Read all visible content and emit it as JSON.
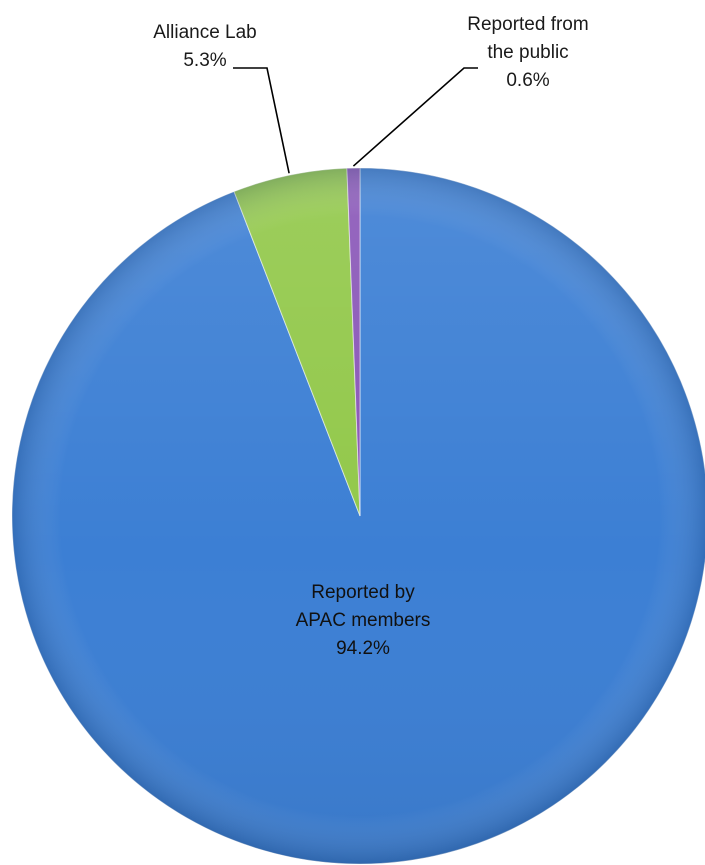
{
  "chart_data": {
    "type": "pie",
    "title": "",
    "slices": [
      {
        "name": "Reported by APAC members",
        "label_lines": [
          "Reported by",
          "APAC members"
        ],
        "value": 94.2,
        "value_label": "94.2%",
        "color": "#3c7fd4",
        "label_position": "inside"
      },
      {
        "name": "Alliance Lab",
        "label_lines": [
          "Alliance Lab"
        ],
        "value": 5.3,
        "value_label": "5.3%",
        "color": "#92c84a",
        "label_position": "outside-top-left"
      },
      {
        "name": "Reported from the public",
        "label_lines": [
          "Reported from",
          "the public"
        ],
        "value": 0.6,
        "value_label": "0.6%",
        "color": "#8a57b8",
        "label_position": "outside-top-right"
      }
    ],
    "start_angle": "12 o'clock",
    "direction": "clockwise",
    "legend": "none"
  }
}
